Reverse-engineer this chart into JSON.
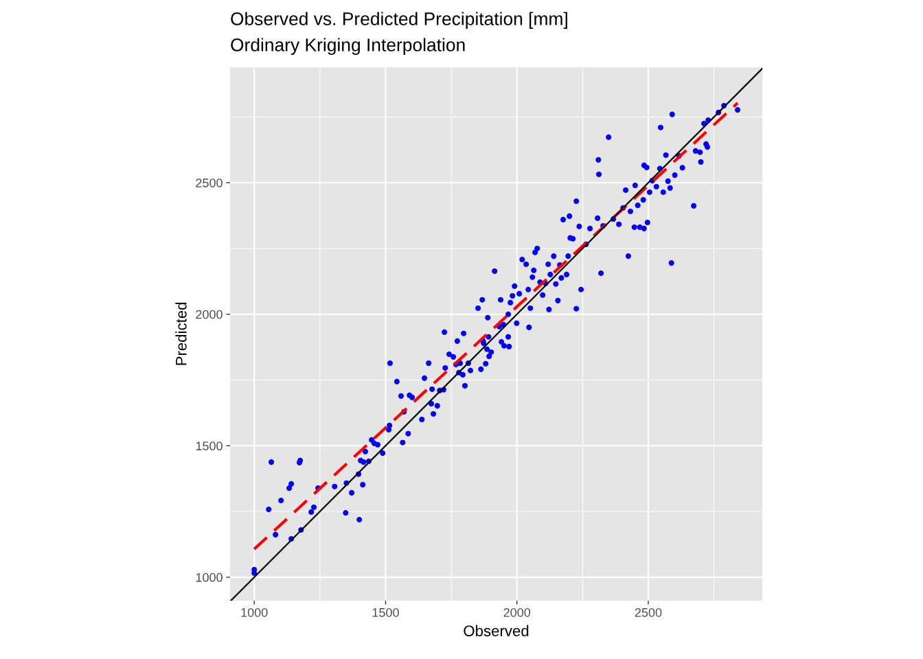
{
  "chart_data": {
    "type": "scatter",
    "title": "Observed vs. Predicted Precipitation [mm]",
    "subtitle": "Ordinary Kriging Interpolation",
    "xlabel": "Observed",
    "ylabel": "Predicted",
    "xlim": [
      908,
      2934
    ],
    "ylim": [
      911,
      2939
    ],
    "xticks": [
      1000,
      1500,
      2000,
      2500
    ],
    "yticks": [
      1000,
      1500,
      2000,
      2500
    ],
    "grid": true,
    "legend": false,
    "marker": "circle",
    "series": [
      {
        "color": "#0000ff",
        "x": [
          1000,
          1000,
          1055,
          1065,
          1081,
          1102,
          1133,
          1141,
          1141,
          1175,
          1172,
          1178,
          1217,
          1227,
          1243,
          1306,
          1348,
          1351,
          1371,
          1397,
          1400,
          1405,
          1413,
          1416,
          1423,
          1436,
          1447,
          1457,
          1470,
          1489,
          1512,
          1515,
          1517,
          1543,
          1559,
          1565,
          1570,
          1586,
          1591,
          1601,
          1638,
          1648,
          1664,
          1674,
          1677,
          1682,
          1697,
          1706,
          1721,
          1724,
          1727,
          1742,
          1758,
          1768,
          1773,
          1779,
          1784,
          1794,
          1797,
          1802,
          1815,
          1823,
          1852,
          1863,
          1868,
          1871,
          1873,
          1881,
          1886,
          1889,
          1892,
          1894,
          1902,
          1915,
          1933,
          1938,
          1941,
          1949,
          1951,
          1967,
          1970,
          1967,
          1975,
          1983,
          1991,
          1999,
          2009,
          2020,
          2035,
          2043,
          2046,
          2051,
          2059,
          2064,
          2069,
          2077,
          2088,
          2098,
          2109,
          2119,
          2122,
          2127,
          2140,
          2148,
          2156,
          2163,
          2169,
          2176,
          2189,
          2195,
          2200,
          2203,
          2213,
          2226,
          2226,
          2237,
          2244,
          2263,
          2278,
          2307,
          2310,
          2312,
          2320,
          2328,
          2349,
          2367,
          2388,
          2404,
          2414,
          2424,
          2432,
          2447,
          2460,
          2468,
          2481,
          2484,
          2484,
          2497,
          2505,
          2515,
          2531,
          2544,
          2547,
          2557,
          2567,
          2575,
          2583,
          2588,
          2591,
          2601,
          2617,
          2630,
          2673,
          2680,
          2700,
          2712,
          2720,
          2728,
          2767,
          2788,
          2840,
          2697,
          2725,
          2494,
          2450
        ],
        "values": [
          1029,
          1016,
          1258,
          1438,
          1162,
          1292,
          1339,
          1355,
          1146,
          1444,
          1436,
          1180,
          1248,
          1266,
          1339,
          1345,
          1245,
          1358,
          1321,
          1392,
          1219,
          1444,
          1352,
          1438,
          1478,
          1441,
          1522,
          1509,
          1504,
          1472,
          1561,
          1577,
          1814,
          1744,
          1689,
          1512,
          1629,
          1546,
          1692,
          1684,
          1600,
          1757,
          1814,
          1660,
          1715,
          1621,
          1652,
          1710,
          1713,
          1932,
          1796,
          1848,
          1838,
          1809,
          1898,
          1778,
          1814,
          1770,
          1927,
          1728,
          1814,
          1786,
          2023,
          1791,
          2055,
          1898,
          1890,
          1812,
          1867,
          1987,
          1914,
          1840,
          1856,
          2164,
          1953,
          2055,
          1895,
          1960,
          1880,
          1914,
          1877,
          2000,
          2044,
          2070,
          2107,
          1966,
          2078,
          2208,
          2190,
          2094,
          1950,
          2023,
          2141,
          2167,
          2235,
          2250,
          2122,
          2073,
          2117,
          2190,
          2018,
          2151,
          2221,
          2115,
          2052,
          2187,
          2138,
          2360,
          2151,
          2221,
          2373,
          2290,
          2287,
          2430,
          2021,
          2334,
          2094,
          2266,
          2326,
          2365,
          2587,
          2532,
          2156,
          2336,
          2673,
          2362,
          2342,
          2404,
          2472,
          2221,
          2391,
          2331,
          2414,
          2331,
          2435,
          2326,
          2566,
          2349,
          2464,
          2508,
          2485,
          2554,
          2710,
          2464,
          2605,
          2506,
          2480,
          2195,
          2760,
          2529,
          2602,
          2557,
          2412,
          2621,
          2579,
          2725,
          2647,
          2738,
          2767,
          2793,
          2777,
          2616,
          2636,
          2558,
          2490
        ]
      },
      {
        "type": "line",
        "color": "#000000",
        "line_style": "solid",
        "marker": "none",
        "x": [
          911,
          2934
        ],
        "values": [
          911,
          2934
        ]
      },
      {
        "type": "line",
        "color": "#ff0000",
        "line_style": "dashed",
        "marker": "none",
        "x": [
          1000,
          2840
        ],
        "values": [
          1107,
          2803
        ]
      }
    ]
  }
}
